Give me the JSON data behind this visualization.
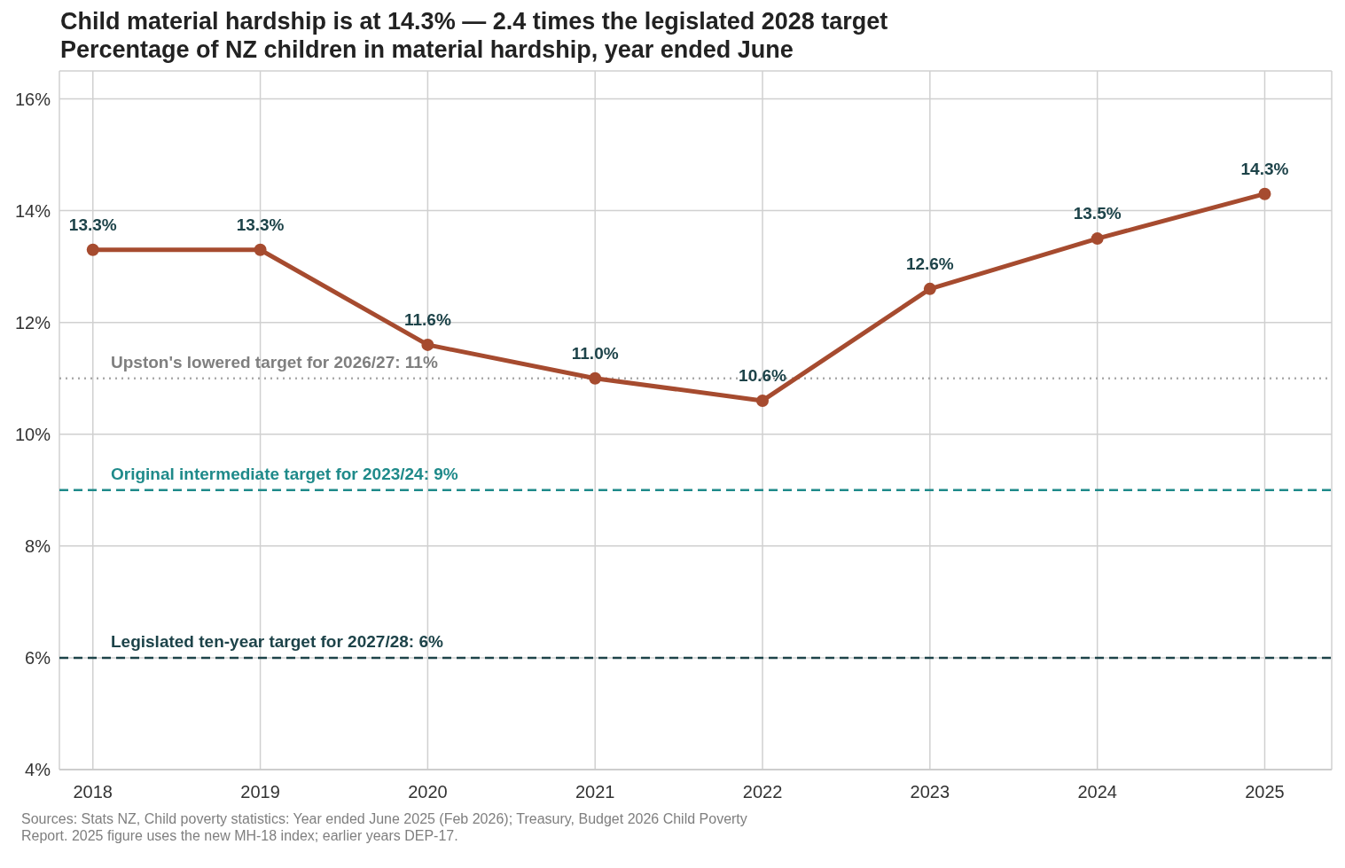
{
  "chart_data": {
    "type": "line",
    "title": "Child material hardship is at 14.3% — 2.4 times the legislated 2028 target",
    "subtitle": "Percentage of NZ children in material hardship, year ended June",
    "x": [
      2018,
      2019,
      2020,
      2021,
      2022,
      2023,
      2024,
      2025
    ],
    "series": [
      {
        "color": "#a64b2f",
        "values": [
          13.3,
          13.3,
          11.6,
          11.0,
          10.6,
          12.6,
          13.5,
          14.3
        ],
        "value_labels": [
          "13.3%",
          "13.3%",
          "11.6%",
          "11.0%",
          "10.6%",
          "12.6%",
          "13.5%",
          "14.3%"
        ]
      }
    ],
    "xlim": [
      2017.8,
      2025.4
    ],
    "xticks": [
      2018,
      2019,
      2020,
      2021,
      2022,
      2023,
      2024,
      2025
    ],
    "ylim": [
      4,
      16.5
    ],
    "yticks": [
      {
        "value": 4,
        "label": "4%"
      },
      {
        "value": 6,
        "label": "6%"
      },
      {
        "value": 8,
        "label": "8%"
      },
      {
        "value": 10,
        "label": "10%"
      },
      {
        "value": 12,
        "label": "12%"
      },
      {
        "value": 14,
        "label": "14%"
      },
      {
        "value": 16,
        "label": "16%"
      }
    ],
    "grid": true,
    "legend": false,
    "marker": "circle",
    "line_style": "solid",
    "ref_lines": [
      {
        "axis": "y",
        "value": 11,
        "label": "Upston's lowered target for 2026/27: 11%",
        "color": "#aaaaaa",
        "line_style": "dotted"
      },
      {
        "axis": "y",
        "value": 9,
        "label": "Original intermediate target for 2023/24: 9%",
        "color": "#1f8a8a",
        "line_style": "dashed"
      },
      {
        "axis": "y",
        "value": 6,
        "label": "Legislated ten-year target for 2027/28: 6%",
        "color": "#1d4349",
        "line_style": "dashed"
      }
    ],
    "annotations": [
      "Sources: Stats NZ, Child poverty statistics: Year ended June 2025 (Feb 2026); Treasury, Budget 2026 Child Poverty Report. 2025 figure uses the new MH-18 index; earlier years DEP-17."
    ]
  }
}
